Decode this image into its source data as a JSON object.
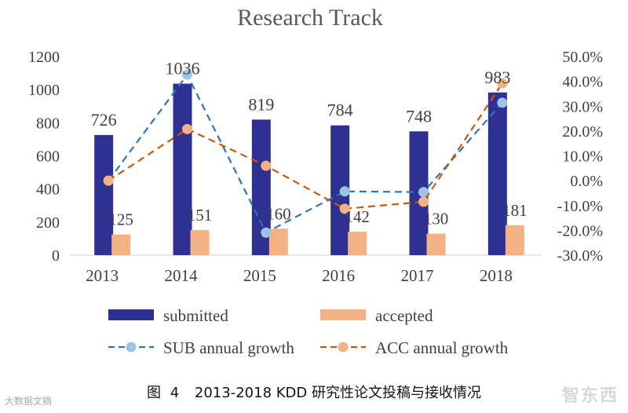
{
  "chart_data": {
    "type": "bar",
    "title": "Research Track",
    "categories": [
      "2013",
      "2014",
      "2015",
      "2016",
      "2017",
      "2018"
    ],
    "y_left": {
      "ticks": [
        "0",
        "200",
        "400",
        "600",
        "800",
        "1000",
        "1200"
      ],
      "ylim": [
        0,
        1200
      ]
    },
    "y_right": {
      "ticks": [
        "-30.0%",
        "-20.0%",
        "-10.0%",
        "0.0%",
        "10.0%",
        "20.0%",
        "30.0%",
        "40.0%",
        "50.0%"
      ],
      "ylim": [
        -30,
        50
      ]
    },
    "series": [
      {
        "name": "submitted",
        "kind": "bar",
        "axis": "left",
        "color": "#2E3192",
        "values": [
          726,
          1036,
          819,
          784,
          748,
          983
        ],
        "labels": [
          "726",
          "1036",
          "819",
          "784",
          "748",
          "983"
        ]
      },
      {
        "name": "accepted",
        "kind": "bar",
        "axis": "left",
        "color": "#F4B183",
        "values": [
          125,
          151,
          160,
          142,
          130,
          181
        ],
        "labels": [
          "125",
          "151",
          "160",
          "142",
          "130",
          "181"
        ]
      },
      {
        "name": "SUB annual growth",
        "kind": "line",
        "axis": "right",
        "color": "#2E75B6",
        "marker_color": "#9DC3E6",
        "values": [
          0.0,
          42.7,
          -20.9,
          -4.3,
          -4.6,
          31.4
        ]
      },
      {
        "name": "ACC annual growth",
        "kind": "line",
        "axis": "right",
        "color": "#C55A11",
        "marker_color": "#F4B183",
        "values": [
          0.0,
          20.8,
          6.0,
          -11.3,
          -8.5,
          39.2
        ]
      }
    ],
    "legend": [
      {
        "label": "submitted",
        "type": "bar",
        "color": "#2E3192"
      },
      {
        "label": "accepted",
        "type": "bar",
        "color": "#F4B183"
      },
      {
        "label": "SUB annual growth",
        "type": "line",
        "color": "#2E75B6",
        "marker": "#9DC3E6"
      },
      {
        "label": "ACC annual growth",
        "type": "line",
        "color": "#C55A11",
        "marker": "#F4B183"
      }
    ],
    "legend_position": "bottom"
  },
  "caption": {
    "prefix": "图",
    "number": "4",
    "text": "2013-2018 KDD 研究性论文投稿与接收情况"
  },
  "watermarks": {
    "left": "大数据文摘",
    "right": "智东西"
  }
}
